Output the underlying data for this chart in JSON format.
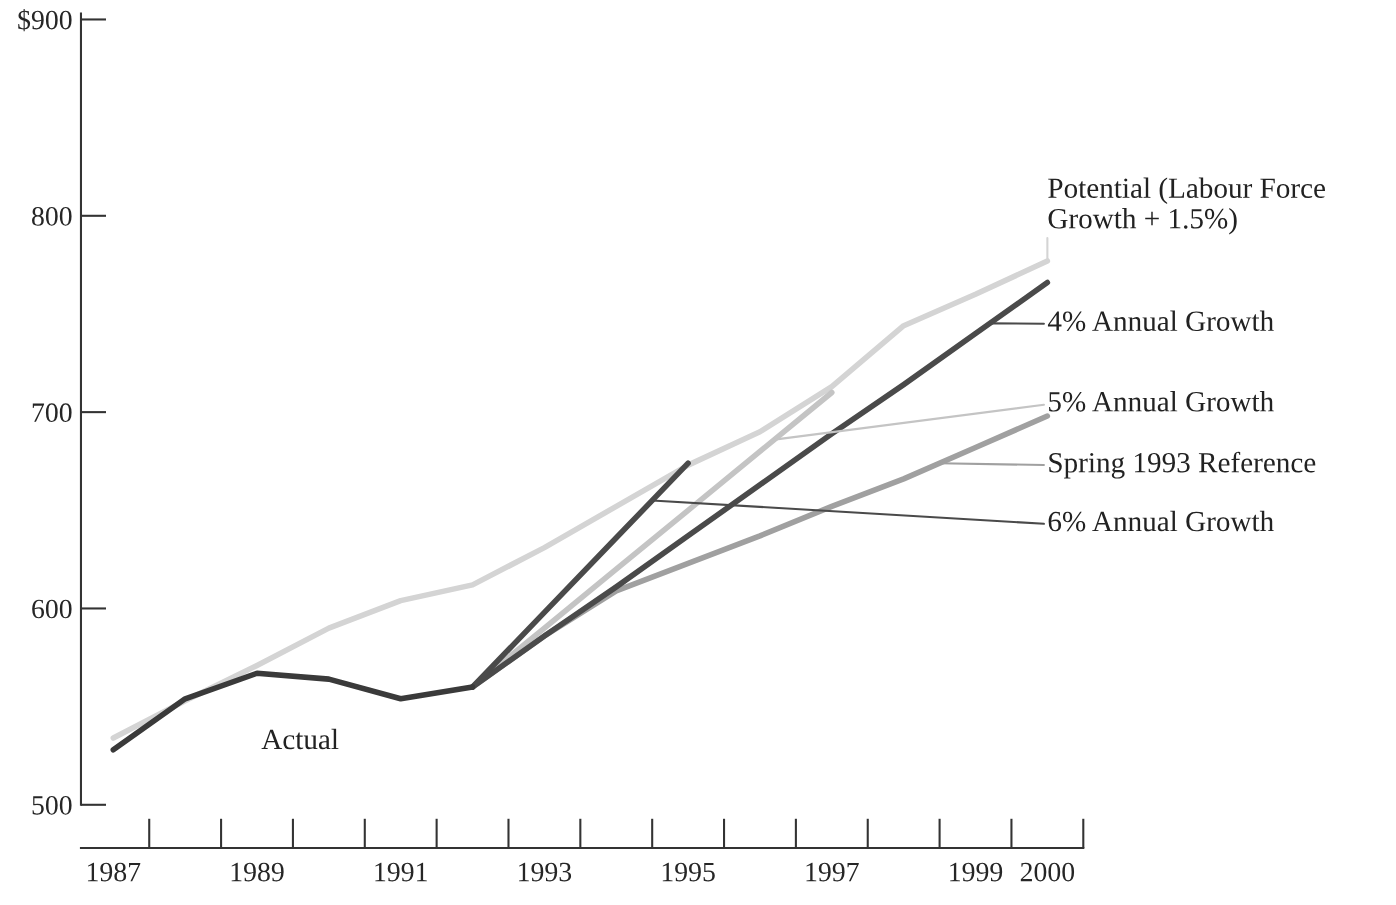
{
  "chart_data": {
    "type": "line",
    "categories": [
      "1987",
      null,
      "1989",
      null,
      "1991",
      null,
      "1993",
      null,
      "1995",
      null,
      "1997",
      null,
      "1999",
      "2000"
    ],
    "ylim": [
      478,
      903
    ],
    "yticks": [
      500,
      600,
      700,
      800,
      {
        "value": 900,
        "label": "$900"
      }
    ],
    "grid": false,
    "legend": "right",
    "series": [
      {
        "name": "Potential (Labour Force Growth + 1.5%)",
        "color": "#d4d4d4",
        "values": [
          534,
          553,
          571,
          590,
          604,
          612,
          631,
          652,
          673,
          690,
          713,
          744,
          760,
          777
        ]
      },
      {
        "name": "Spring 1993 Reference",
        "color": "#a0a0a0",
        "values": [
          null,
          null,
          null,
          null,
          null,
          560,
          586,
          609,
          623,
          637,
          652,
          666,
          682,
          698
        ]
      },
      {
        "name": "5% Annual Growth",
        "color": "#c4c4c4",
        "values": [
          null,
          null,
          null,
          null,
          null,
          560,
          590,
          620,
          650,
          680,
          710,
          null,
          null,
          null
        ]
      },
      {
        "name": "4% Annual Growth",
        "color": "#4a4a4a",
        "values": [
          null,
          null,
          null,
          null,
          null,
          560,
          586,
          611,
          637,
          663,
          689,
          714,
          740,
          766
        ]
      },
      {
        "name": "6% Annual Growth",
        "color": "#4a4a4a",
        "values": [
          null,
          null,
          null,
          null,
          null,
          560,
          598,
          636,
          674,
          null,
          null,
          null,
          null,
          null
        ]
      },
      {
        "name": "Actual",
        "color": "#3a3a3a",
        "values": [
          528,
          554,
          567,
          564,
          554,
          560,
          null,
          null,
          null,
          null,
          null,
          null,
          null,
          null
        ]
      }
    ]
  }
}
